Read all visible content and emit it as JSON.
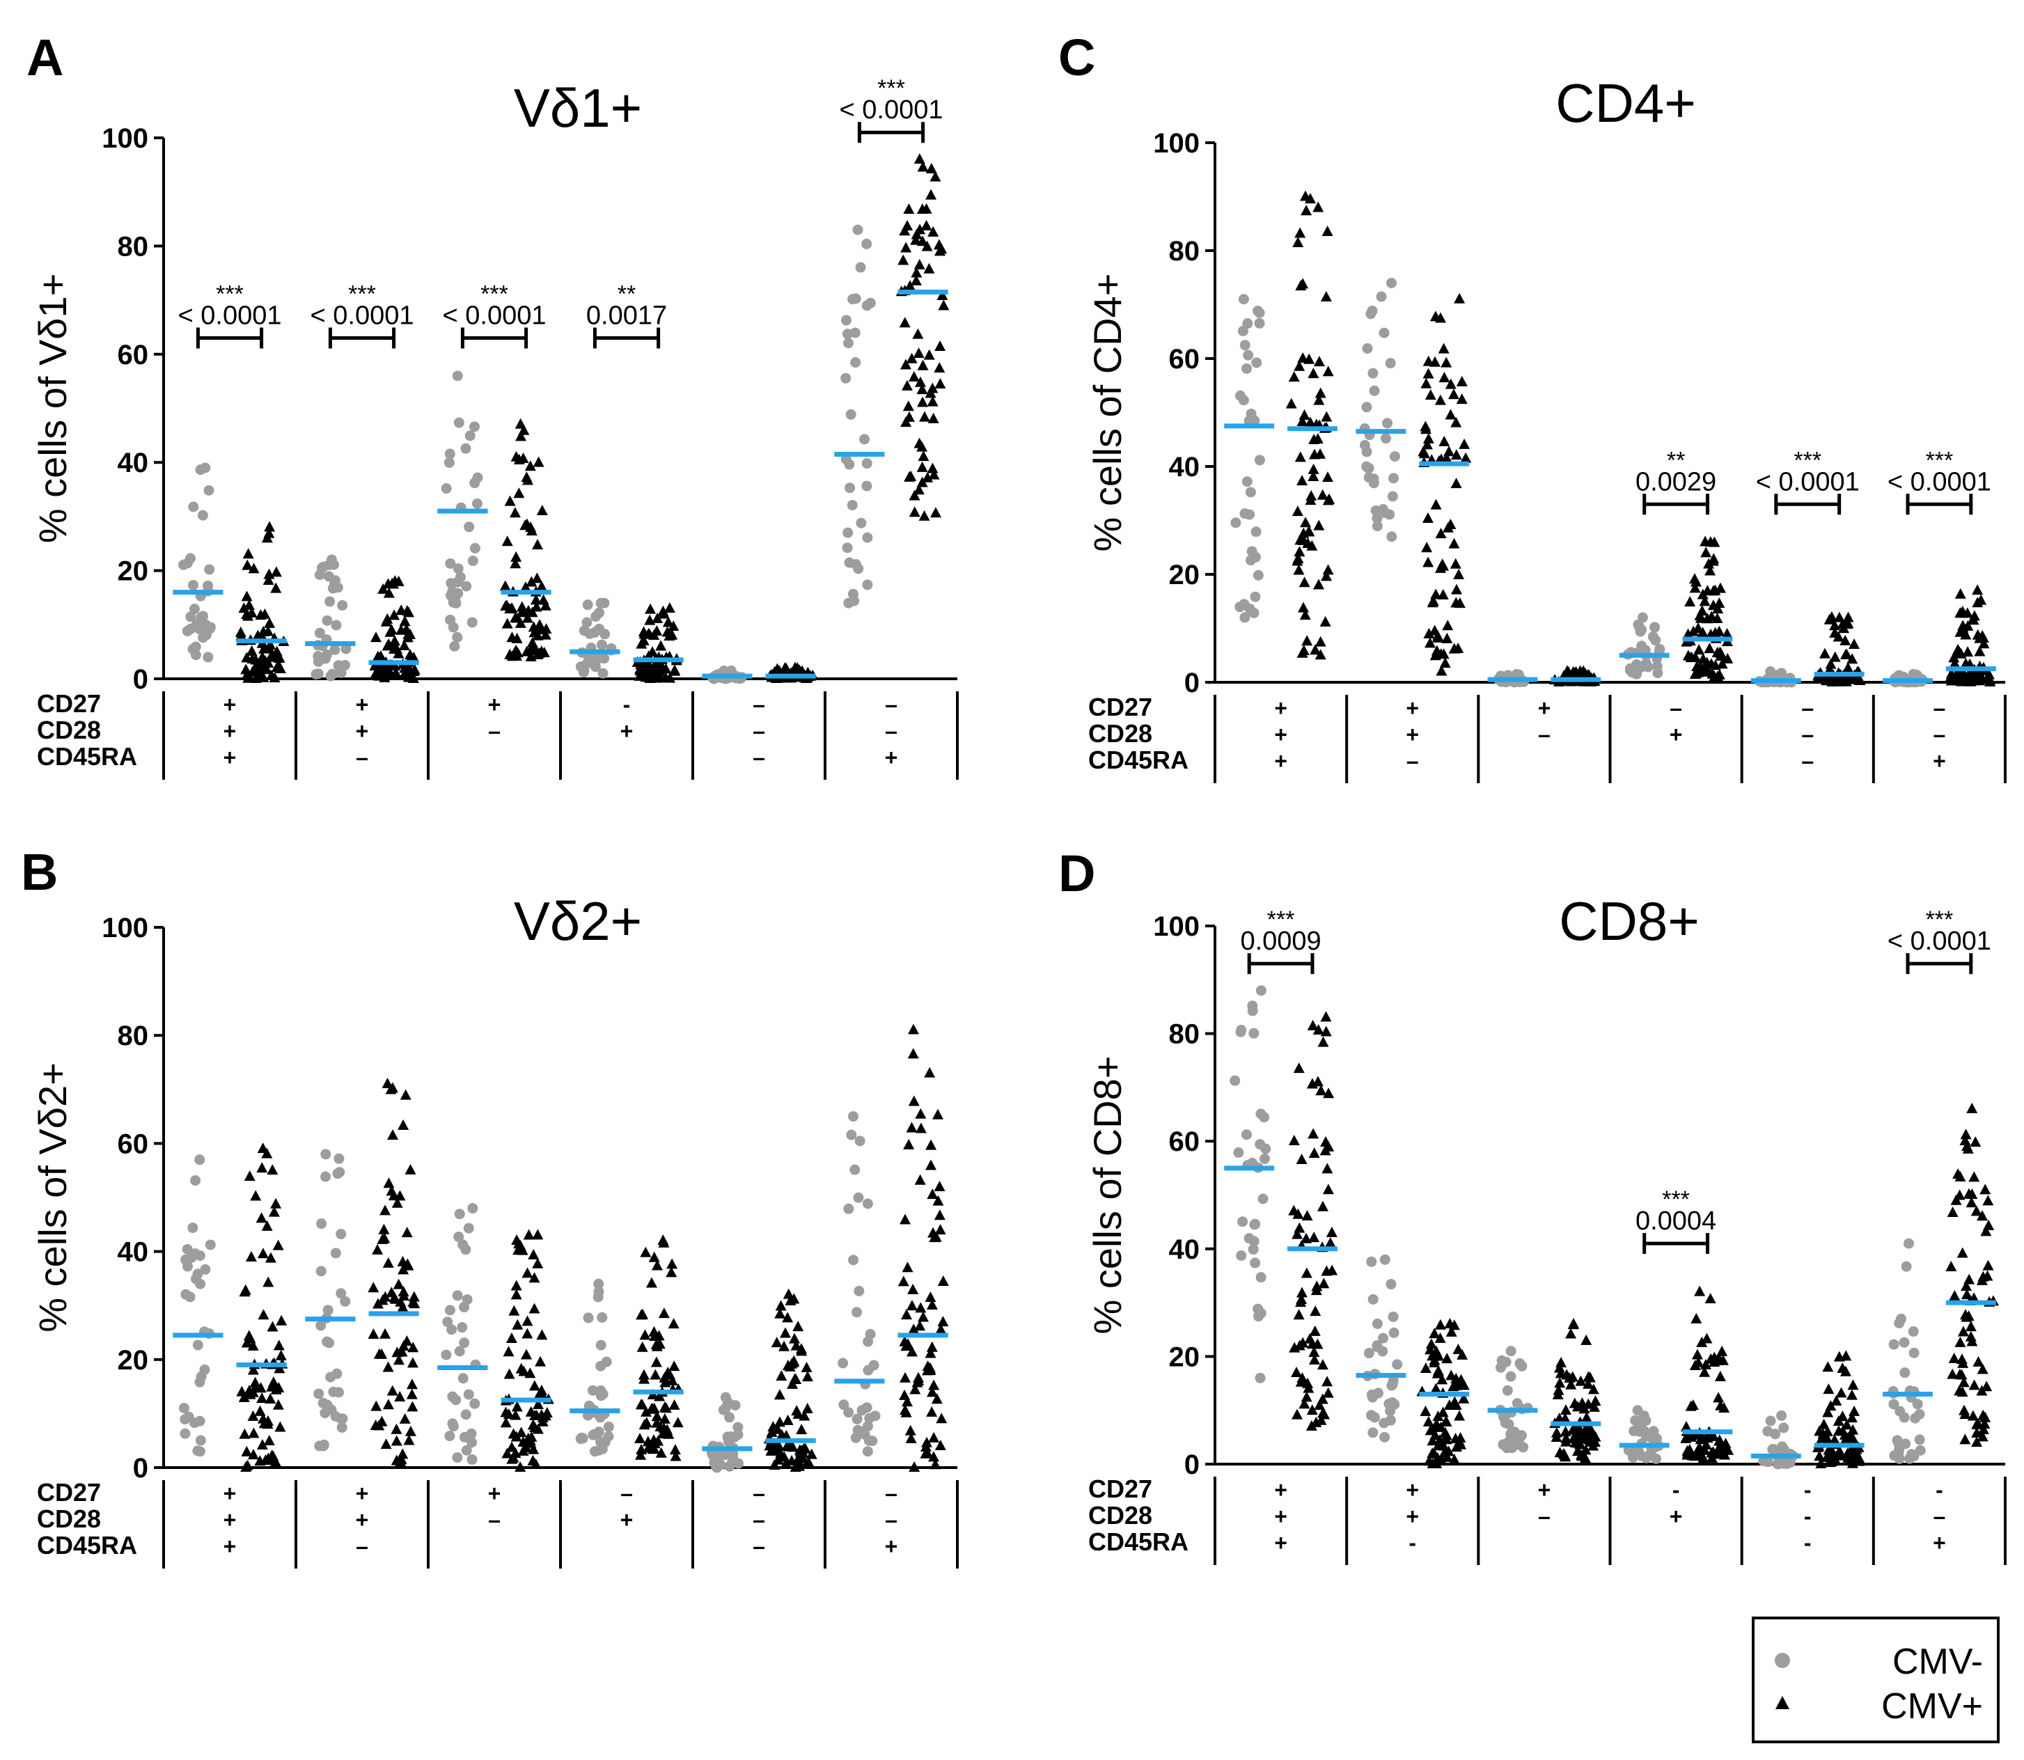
{
  "chart_data": [
    {
      "type": "scatter",
      "panel": "A",
      "title": "Vδ1+",
      "ylabel": "% cells of Vδ1+",
      "ylim": [
        0,
        100
      ],
      "yticks": [
        "0",
        "20",
        "40",
        "60",
        "80",
        "100"
      ],
      "row_labels": [
        "CD27",
        "CD28",
        "CD45RA"
      ],
      "groups": [
        {
          "signs": [
            "+",
            "+",
            "+"
          ],
          "cmv_neg_median": 16,
          "cmv_pos_median": 7,
          "cmv_neg_range": [
            4,
            39
          ],
          "cmv_pos_range": [
            0,
            28
          ]
        },
        {
          "signs": [
            "+",
            "+",
            "–"
          ],
          "cmv_neg_median": 6.5,
          "cmv_pos_median": 3,
          "cmv_neg_range": [
            0.5,
            22
          ],
          "cmv_pos_range": [
            0,
            18
          ]
        },
        {
          "signs": [
            "+",
            "–",
            ""
          ],
          "cmv_neg_median": 31,
          "cmv_pos_median": 16,
          "cmv_neg_range": [
            6,
            56
          ],
          "cmv_pos_range": [
            4,
            47
          ]
        },
        {
          "signs": [
            "-",
            "+",
            ""
          ],
          "cmv_neg_median": 5,
          "cmv_pos_median": 3.5,
          "cmv_neg_range": [
            1,
            14
          ],
          "cmv_pos_range": [
            0,
            13
          ]
        },
        {
          "signs": [
            "–",
            "–",
            "–"
          ],
          "cmv_neg_median": 0.5,
          "cmv_pos_median": 0.5,
          "cmv_neg_range": [
            0,
            1.5
          ],
          "cmv_pos_range": [
            0,
            2
          ]
        },
        {
          "signs": [
            "–",
            "–",
            "+"
          ],
          "cmv_neg_median": 41.5,
          "cmv_pos_median": 71.5,
          "cmv_neg_range": [
            14,
            83
          ],
          "cmv_pos_range": [
            30,
            96
          ]
        }
      ],
      "comparisons": [
        {
          "group": 0,
          "stars": "***",
          "p": "< 0.0001",
          "bracket_y": 63
        },
        {
          "group": 1,
          "stars": "***",
          "p": "< 0.0001",
          "bracket_y": 63
        },
        {
          "group": 2,
          "stars": "***",
          "p": "< 0.0001",
          "bracket_y": 63
        },
        {
          "group": 3,
          "stars": "**",
          "p": "0.0017",
          "bracket_y": 63
        },
        {
          "group": 5,
          "stars": "***",
          "p": "< 0.0001",
          "bracket_y": 101
        }
      ]
    },
    {
      "type": "scatter",
      "panel": "B",
      "title": "Vδ2+",
      "ylabel": "% cells of Vδ2+",
      "ylim": [
        0,
        100
      ],
      "yticks": [
        "0",
        "20",
        "40",
        "60",
        "80",
        "100"
      ],
      "row_labels": [
        "CD27",
        "CD28",
        "CD45RA"
      ],
      "groups": [
        {
          "signs": [
            "+",
            "+",
            "+"
          ],
          "cmv_neg_median": 24.5,
          "cmv_pos_median": 19,
          "cmv_neg_range": [
            3,
            57
          ],
          "cmv_pos_range": [
            0,
            59
          ]
        },
        {
          "signs": [
            "+",
            "+",
            "–"
          ],
          "cmv_neg_median": 27.5,
          "cmv_pos_median": 28.5,
          "cmv_neg_range": [
            4,
            58
          ],
          "cmv_pos_range": [
            1,
            71
          ]
        },
        {
          "signs": [
            "+",
            "–",
            ""
          ],
          "cmv_neg_median": 18.5,
          "cmv_pos_median": 12.5,
          "cmv_neg_range": [
            1.5,
            48
          ],
          "cmv_pos_range": [
            0,
            43
          ]
        },
        {
          "signs": [
            "–",
            "+",
            ""
          ],
          "cmv_neg_median": 10.5,
          "cmv_pos_median": 14,
          "cmv_neg_range": [
            3,
            34
          ],
          "cmv_pos_range": [
            2,
            42
          ]
        },
        {
          "signs": [
            "–",
            "–",
            "–"
          ],
          "cmv_neg_median": 3.5,
          "cmv_pos_median": 5,
          "cmv_neg_range": [
            0,
            13
          ],
          "cmv_pos_range": [
            0,
            32
          ]
        },
        {
          "signs": [
            "–",
            "–",
            "+"
          ],
          "cmv_neg_median": 16,
          "cmv_pos_median": 24.5,
          "cmv_neg_range": [
            3,
            65
          ],
          "cmv_pos_range": [
            0,
            81
          ]
        }
      ],
      "comparisons": []
    },
    {
      "type": "scatter",
      "panel": "C",
      "title": "CD4+",
      "ylabel": "% cells of CD4+",
      "ylim": [
        0,
        100
      ],
      "yticks": [
        "0",
        "20",
        "40",
        "60",
        "80",
        "100"
      ],
      "row_labels": [
        "CD27",
        "CD28",
        "CD45RA"
      ],
      "groups": [
        {
          "signs": [
            "+",
            "+",
            "+"
          ],
          "cmv_neg_median": 47.5,
          "cmv_pos_median": 47,
          "cmv_neg_range": [
            12,
            71
          ],
          "cmv_pos_range": [
            5,
            90
          ]
        },
        {
          "signs": [
            "+",
            "+",
            "–"
          ],
          "cmv_neg_median": 46.5,
          "cmv_pos_median": 40.5,
          "cmv_neg_range": [
            27,
            74
          ],
          "cmv_pos_range": [
            2,
            71
          ]
        },
        {
          "signs": [
            "+",
            "–",
            ""
          ],
          "cmv_neg_median": 0.5,
          "cmv_pos_median": 0.5,
          "cmv_neg_range": [
            0,
            1.5
          ],
          "cmv_pos_range": [
            0,
            2
          ]
        },
        {
          "signs": [
            "–",
            "+",
            ""
          ],
          "cmv_neg_median": 5,
          "cmv_pos_median": 8,
          "cmv_neg_range": [
            1.5,
            12
          ],
          "cmv_pos_range": [
            1,
            26
          ]
        },
        {
          "signs": [
            "–",
            "–",
            "–"
          ],
          "cmv_neg_median": 0.3,
          "cmv_pos_median": 1.5,
          "cmv_neg_range": [
            0,
            2
          ],
          "cmv_pos_range": [
            0,
            12
          ]
        },
        {
          "signs": [
            "–",
            "–",
            "+"
          ],
          "cmv_neg_median": 0.3,
          "cmv_pos_median": 2.5,
          "cmv_neg_range": [
            0,
            1.5
          ],
          "cmv_pos_range": [
            0,
            17
          ]
        }
      ],
      "comparisons": [
        {
          "group": 3,
          "stars": "**",
          "p": "0.0029",
          "bracket_y": 33
        },
        {
          "group": 4,
          "stars": "***",
          "p": "< 0.0001",
          "bracket_y": 33
        },
        {
          "group": 5,
          "stars": "***",
          "p": "< 0.0001",
          "bracket_y": 33
        }
      ]
    },
    {
      "type": "scatter",
      "panel": "D",
      "title": "CD8+",
      "ylabel": "% cells of CD8+",
      "ylim": [
        0,
        100
      ],
      "yticks": [
        "0",
        "20",
        "40",
        "60",
        "80",
        "100"
      ],
      "row_labels": [
        "CD27",
        "CD28",
        "CD45RA"
      ],
      "groups": [
        {
          "signs": [
            "+",
            "+",
            "+"
          ],
          "cmv_neg_median": 55,
          "cmv_pos_median": 40,
          "cmv_neg_range": [
            16,
            88
          ],
          "cmv_pos_range": [
            7,
            83
          ]
        },
        {
          "signs": [
            "+",
            "+",
            "-"
          ],
          "cmv_neg_median": 16.5,
          "cmv_pos_median": 13,
          "cmv_neg_range": [
            5,
            38
          ],
          "cmv_pos_range": [
            0,
            26
          ]
        },
        {
          "signs": [
            "+",
            "–",
            ""
          ],
          "cmv_neg_median": 10,
          "cmv_pos_median": 7.5,
          "cmv_neg_range": [
            3,
            21
          ],
          "cmv_pos_range": [
            1,
            26
          ]
        },
        {
          "signs": [
            "-",
            "+",
            ""
          ],
          "cmv_neg_median": 3.5,
          "cmv_pos_median": 6,
          "cmv_neg_range": [
            1,
            10
          ],
          "cmv_pos_range": [
            1,
            32
          ]
        },
        {
          "signs": [
            "-",
            "-",
            "-"
          ],
          "cmv_neg_median": 1.5,
          "cmv_pos_median": 3.5,
          "cmv_neg_range": [
            0,
            9
          ],
          "cmv_pos_range": [
            0,
            20
          ]
        },
        {
          "signs": [
            "-",
            "–",
            "+"
          ],
          "cmv_neg_median": 13,
          "cmv_pos_median": 30,
          "cmv_neg_range": [
            1,
            41
          ],
          "cmv_pos_range": [
            4,
            66
          ]
        }
      ],
      "comparisons": [
        {
          "group": 0,
          "stars": "***",
          "p": "0.0009",
          "bracket_y": 93
        },
        {
          "group": 3,
          "stars": "***",
          "p": "0.0004",
          "bracket_y": 41
        },
        {
          "group": 5,
          "stars": "***",
          "p": "< 0.0001",
          "bracket_y": 93
        }
      ]
    }
  ],
  "legend": {
    "cmv_neg_label": "CMV-",
    "cmv_pos_label": "CMV+"
  },
  "colors": {
    "cmv_neg": "#9d9d9d",
    "cmv_pos": "#000000",
    "median": "#29a3e8"
  }
}
